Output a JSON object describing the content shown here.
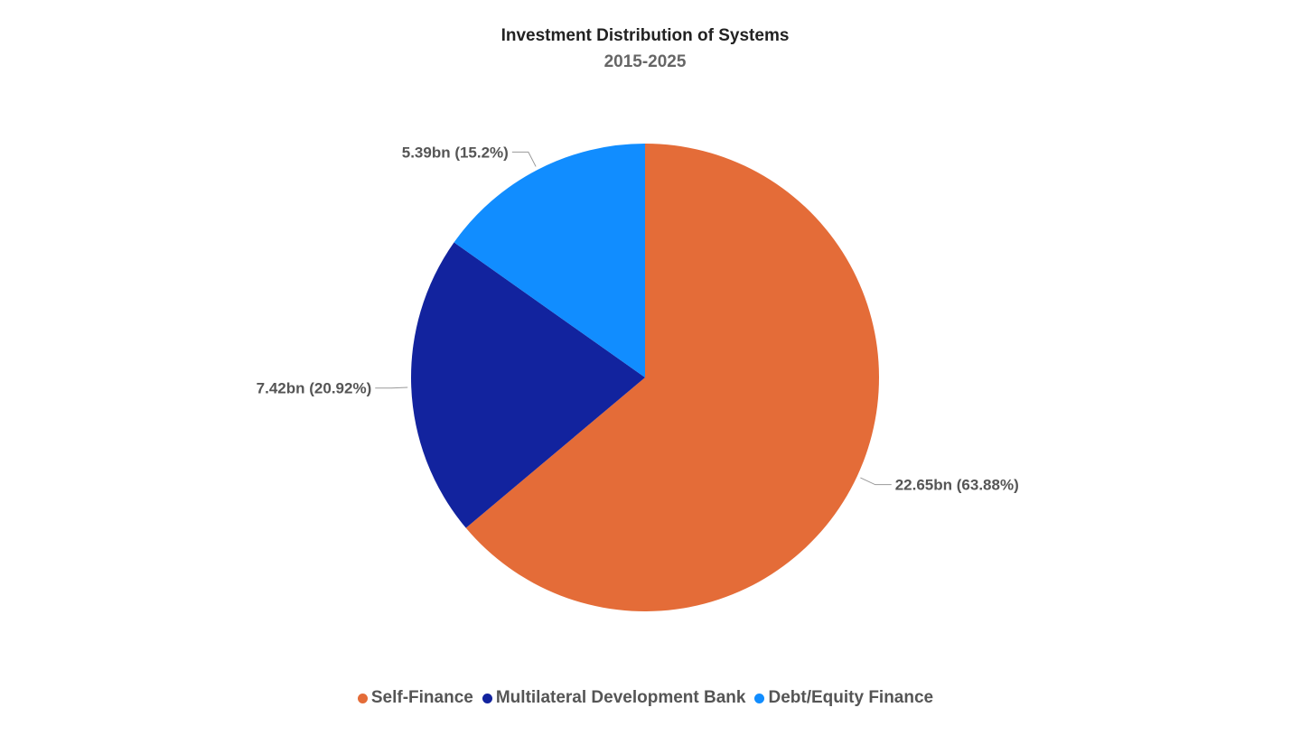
{
  "chart_data": {
    "type": "pie",
    "title": "Investment Distribution of Systems",
    "subtitle": "2015-2025",
    "start_angle": "top",
    "direction": "clockwise",
    "slices": [
      {
        "name": "Self-Finance",
        "value": 22.65,
        "percent": 63.88,
        "label": "22.65bn (63.88%)",
        "color": "#E46C38"
      },
      {
        "name": "Multilateral Development Bank",
        "value": 7.42,
        "percent": 20.92,
        "label": "7.42bn (20.92%)",
        "color": "#12239E"
      },
      {
        "name": "Debt/Equity Finance",
        "value": 5.39,
        "percent": 15.2,
        "label": "5.39bn (15.2%)",
        "color": "#118DFF"
      }
    ],
    "legend_position": "bottom-center"
  }
}
